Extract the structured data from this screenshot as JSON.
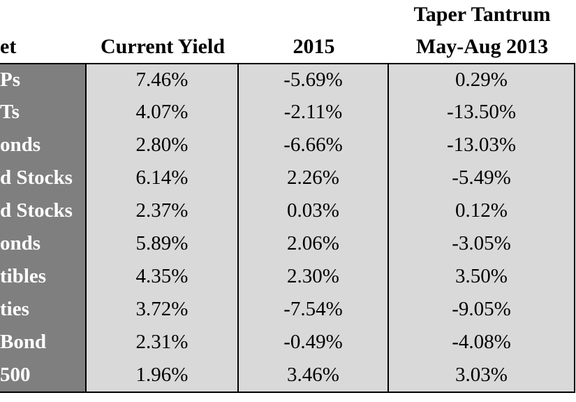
{
  "table": {
    "header": [
      [
        "et"
      ],
      [
        "Current Yield"
      ],
      [
        "2015"
      ],
      [
        "Taper Tantrum",
        "May-Aug 2013"
      ]
    ],
    "rows": [
      [
        "Ps",
        "7.46%",
        "-5.69%",
        "0.29%"
      ],
      [
        "Ts",
        "4.07%",
        "-2.11%",
        "-13.50%"
      ],
      [
        "onds",
        "2.80%",
        "-6.66%",
        "-13.03%"
      ],
      [
        "d Stocks",
        "6.14%",
        "2.26%",
        "-5.49%"
      ],
      [
        "d Stocks",
        "2.37%",
        "0.03%",
        "0.12%"
      ],
      [
        "onds",
        "5.89%",
        "2.06%",
        "-3.05%"
      ],
      [
        "tibles",
        "4.35%",
        "2.30%",
        "3.50%"
      ],
      [
        "ties",
        "3.72%",
        "-7.54%",
        "-9.05%"
      ],
      [
        "Bond",
        "2.31%",
        "-0.49%",
        "-4.08%"
      ],
      [
        "500",
        "1.96%",
        "3.46%",
        "3.03%"
      ]
    ]
  }
}
